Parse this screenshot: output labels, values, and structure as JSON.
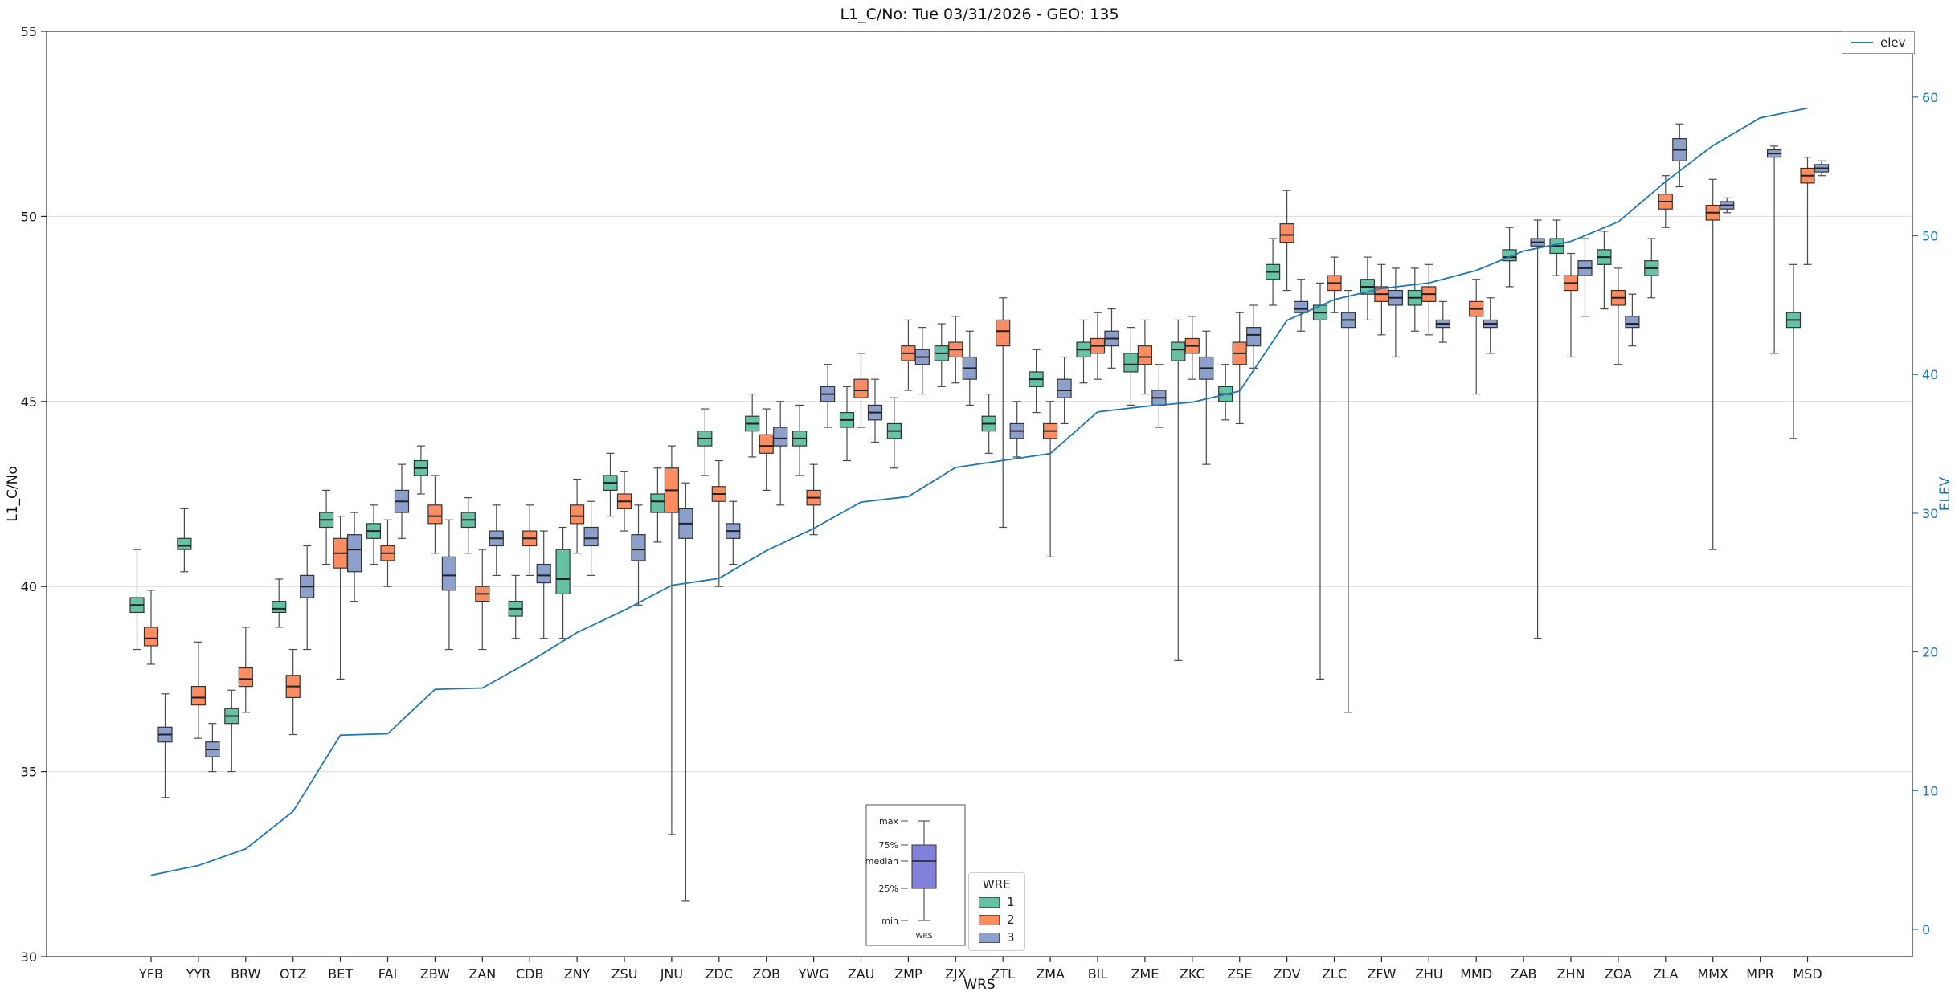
{
  "chart_data": {
    "type": "boxplot",
    "title": "L1_C/No: Tue 03/31/2026 - GEO: 135",
    "xlabel": "WRS",
    "ylabel": "L1_C/No",
    "y2label": "ELEV",
    "ylim": [
      30,
      55
    ],
    "yticks": [
      30,
      35,
      40,
      45,
      50,
      55
    ],
    "y2lim": [
      -1.97,
      64.74
    ],
    "y2ticks": [
      0,
      10,
      20,
      30,
      40,
      50,
      60
    ],
    "grid": "horizontal",
    "axis_color_right": "#1f77b4",
    "categories": [
      "YFB",
      "YYR",
      "BRW",
      "OTZ",
      "BET",
      "FAI",
      "ZBW",
      "ZAN",
      "CDB",
      "ZNY",
      "ZSU",
      "JNU",
      "ZDC",
      "ZOB",
      "YWG",
      "ZAU",
      "ZMP",
      "ZJX",
      "ZTL",
      "ZMA",
      "BIL",
      "ZME",
      "ZKC",
      "ZSE",
      "ZDV",
      "ZLC",
      "ZFW",
      "ZHU",
      "MMD",
      "ZAB",
      "ZHN",
      "ZOA",
      "ZLA",
      "MMX",
      "MPR",
      "MSD"
    ],
    "series": [
      {
        "name": "1",
        "color": "#66c2a5",
        "boxes": [
          [
            38.3,
            39.3,
            39.5,
            39.7,
            41.0
          ],
          [
            40.4,
            41.0,
            41.1,
            41.3,
            42.1
          ],
          [
            35.0,
            36.3,
            36.5,
            36.7,
            37.2
          ],
          [
            38.9,
            39.3,
            39.4,
            39.6,
            40.2
          ],
          [
            40.6,
            41.6,
            41.8,
            42.0,
            42.6
          ],
          [
            40.6,
            41.3,
            41.5,
            41.7,
            42.2
          ],
          [
            42.5,
            43.0,
            43.2,
            43.4,
            43.8
          ],
          [
            40.9,
            41.6,
            41.8,
            42.0,
            42.4
          ],
          [
            38.6,
            39.2,
            39.4,
            39.6,
            40.3
          ],
          [
            38.6,
            39.8,
            40.2,
            41.0,
            41.6
          ],
          [
            41.9,
            42.6,
            42.8,
            43.0,
            43.6
          ],
          [
            41.2,
            42.0,
            42.3,
            42.5,
            43.2
          ],
          [
            43.0,
            43.8,
            44.0,
            44.2,
            44.8
          ],
          [
            43.5,
            44.2,
            44.4,
            44.6,
            45.2
          ],
          [
            43.0,
            43.8,
            44.0,
            44.2,
            44.9
          ],
          [
            43.4,
            44.3,
            44.5,
            44.7,
            45.4
          ],
          [
            43.2,
            44.0,
            44.2,
            44.4,
            45.1
          ],
          [
            45.4,
            46.1,
            46.3,
            46.5,
            47.1
          ],
          [
            43.6,
            44.2,
            44.4,
            44.6,
            45.2
          ],
          [
            44.7,
            45.4,
            45.6,
            45.8,
            46.4
          ],
          [
            45.5,
            46.2,
            46.4,
            46.6,
            47.2
          ],
          [
            44.9,
            45.8,
            46.0,
            46.3,
            47.0
          ],
          [
            38.0,
            46.1,
            46.4,
            46.6,
            47.2
          ],
          [
            44.5,
            45.0,
            45.2,
            45.4,
            46.0
          ],
          [
            47.6,
            48.3,
            48.5,
            48.7,
            49.4
          ],
          [
            37.5,
            47.2,
            47.4,
            47.6,
            48.2
          ],
          [
            47.2,
            47.9,
            48.1,
            48.3,
            48.9
          ],
          [
            46.9,
            47.6,
            47.8,
            48.0,
            48.6
          ],
          null,
          [
            48.1,
            48.8,
            48.9,
            49.1,
            49.7
          ],
          [
            48.4,
            49.0,
            49.2,
            49.4,
            49.9
          ],
          [
            47.5,
            48.7,
            48.9,
            49.1,
            49.6
          ],
          [
            47.8,
            48.4,
            48.6,
            48.8,
            49.4
          ],
          null,
          null,
          [
            44.0,
            47.0,
            47.2,
            47.4,
            48.7
          ]
        ]
      },
      {
        "name": "2",
        "color": "#fc8d62",
        "boxes": [
          [
            37.9,
            38.4,
            38.6,
            38.9,
            39.9
          ],
          [
            35.9,
            36.8,
            37.0,
            37.3,
            38.5
          ],
          [
            36.6,
            37.3,
            37.5,
            37.8,
            38.9
          ],
          [
            36.0,
            37.0,
            37.3,
            37.6,
            38.3
          ],
          [
            37.5,
            40.5,
            40.9,
            41.3,
            41.9
          ],
          [
            40.0,
            40.7,
            40.9,
            41.1,
            41.8
          ],
          [
            40.9,
            41.7,
            41.9,
            42.2,
            43.0
          ],
          [
            38.3,
            39.6,
            39.8,
            40.0,
            41.0
          ],
          [
            40.3,
            41.1,
            41.3,
            41.5,
            42.2
          ],
          [
            40.9,
            41.7,
            41.9,
            42.2,
            42.9
          ],
          [
            41.5,
            42.1,
            42.3,
            42.5,
            43.1
          ],
          [
            33.3,
            42.0,
            42.6,
            43.2,
            43.8
          ],
          [
            40.0,
            42.3,
            42.5,
            42.7,
            43.4
          ],
          [
            42.6,
            43.6,
            43.8,
            44.1,
            44.8
          ],
          [
            41.4,
            42.2,
            42.4,
            42.6,
            43.3
          ],
          [
            44.3,
            45.1,
            45.3,
            45.6,
            46.3
          ],
          [
            45.3,
            46.1,
            46.3,
            46.5,
            47.2
          ],
          [
            45.5,
            46.2,
            46.4,
            46.6,
            47.3
          ],
          [
            41.6,
            46.5,
            46.9,
            47.2,
            47.8
          ],
          [
            40.8,
            44.0,
            44.2,
            44.4,
            45.0
          ],
          [
            45.6,
            46.3,
            46.5,
            46.7,
            47.4
          ],
          [
            45.2,
            46.0,
            46.2,
            46.5,
            47.2
          ],
          [
            45.6,
            46.3,
            46.5,
            46.7,
            47.3
          ],
          [
            44.4,
            46.0,
            46.3,
            46.6,
            47.4
          ],
          [
            48.0,
            49.3,
            49.5,
            49.8,
            50.7
          ],
          [
            47.4,
            48.0,
            48.2,
            48.4,
            48.9
          ],
          [
            46.8,
            47.7,
            47.9,
            48.1,
            48.7
          ],
          [
            46.8,
            47.7,
            47.9,
            48.1,
            48.7
          ],
          [
            45.2,
            47.3,
            47.5,
            47.7,
            48.3
          ],
          null,
          [
            46.2,
            48.0,
            48.2,
            48.4,
            49.0
          ],
          [
            46.0,
            47.6,
            47.8,
            48.0,
            48.6
          ],
          [
            49.7,
            50.2,
            50.4,
            50.6,
            51.1
          ],
          [
            41.0,
            49.9,
            50.1,
            50.3,
            51.0
          ],
          null,
          [
            48.7,
            50.9,
            51.1,
            51.3,
            51.6
          ]
        ]
      },
      {
        "name": "3",
        "color": "#8da0cb",
        "boxes": [
          [
            34.3,
            35.8,
            36.0,
            36.2,
            37.1
          ],
          [
            35.0,
            35.4,
            35.6,
            35.8,
            36.3
          ],
          null,
          [
            38.3,
            39.7,
            40.0,
            40.3,
            41.1
          ],
          [
            39.6,
            40.4,
            41.0,
            41.4,
            42.0
          ],
          [
            41.3,
            42.0,
            42.3,
            42.6,
            43.3
          ],
          [
            38.3,
            39.9,
            40.3,
            40.8,
            41.8
          ],
          [
            40.3,
            41.1,
            41.3,
            41.5,
            42.2
          ],
          [
            38.6,
            40.1,
            40.3,
            40.6,
            41.5
          ],
          [
            40.3,
            41.1,
            41.3,
            41.6,
            42.3
          ],
          [
            39.5,
            40.7,
            41.0,
            41.4,
            42.2
          ],
          [
            31.5,
            41.3,
            41.7,
            42.1,
            42.8
          ],
          [
            40.6,
            41.3,
            41.5,
            41.7,
            42.3
          ],
          [
            42.2,
            43.8,
            44.0,
            44.3,
            45.0
          ],
          [
            44.3,
            45.0,
            45.2,
            45.4,
            46.0
          ],
          [
            43.9,
            44.5,
            44.7,
            44.9,
            45.6
          ],
          [
            45.2,
            46.0,
            46.2,
            46.4,
            47.0
          ],
          [
            44.9,
            45.6,
            45.9,
            46.2,
            46.9
          ],
          [
            43.5,
            44.0,
            44.2,
            44.4,
            45.0
          ],
          [
            44.4,
            45.1,
            45.3,
            45.6,
            46.2
          ],
          [
            45.9,
            46.5,
            46.7,
            46.9,
            47.5
          ],
          [
            44.3,
            44.9,
            45.1,
            45.3,
            46.0
          ],
          [
            43.3,
            45.6,
            45.9,
            46.2,
            46.9
          ],
          [
            45.9,
            46.5,
            46.8,
            47.0,
            47.6
          ],
          [
            46.9,
            47.4,
            47.5,
            47.7,
            48.3
          ],
          [
            36.6,
            47.0,
            47.2,
            47.4,
            48.0
          ],
          [
            46.2,
            47.6,
            47.8,
            48.0,
            48.6
          ],
          [
            46.6,
            47.0,
            47.1,
            47.2,
            47.7
          ],
          [
            46.3,
            47.0,
            47.1,
            47.2,
            47.8
          ],
          [
            38.6,
            49.2,
            49.3,
            49.4,
            49.9
          ],
          [
            47.3,
            48.4,
            48.6,
            48.8,
            49.4
          ],
          [
            46.5,
            47.0,
            47.1,
            47.3,
            47.9
          ],
          [
            50.8,
            51.5,
            51.8,
            52.1,
            52.5
          ],
          [
            50.1,
            50.2,
            50.3,
            50.4,
            50.5
          ],
          [
            46.3,
            51.6,
            51.7,
            51.8,
            51.9
          ],
          [
            51.1,
            51.2,
            51.3,
            51.4,
            51.5
          ]
        ]
      }
    ],
    "line": {
      "name": "elev",
      "color": "#1f77b4",
      "axis": "right",
      "values": [
        3.9,
        4.6,
        5.8,
        8.5,
        14.0,
        14.1,
        17.3,
        17.4,
        19.3,
        21.4,
        23.0,
        24.8,
        25.3,
        27.3,
        28.9,
        30.8,
        31.2,
        33.3,
        33.8,
        34.3,
        37.3,
        37.7,
        38.0,
        38.8,
        43.9,
        45.4,
        46.2,
        46.6,
        47.5,
        48.9,
        49.6,
        51.0,
        53.9,
        56.5,
        58.5,
        59.2
      ]
    },
    "legends": {
      "line_legend": {
        "label": "elev"
      },
      "box_legend": {
        "title": "WRE",
        "entries": [
          {
            "label": "1",
            "color": "#66c2a5"
          },
          {
            "label": "2",
            "color": "#fc8d62"
          },
          {
            "label": "3",
            "color": "#8da0cb"
          }
        ]
      }
    },
    "inset": {
      "labels": [
        "max",
        "75%",
        "median",
        "25%",
        "min"
      ],
      "xlabel": "WRS",
      "box_color": "#8181d9"
    }
  }
}
